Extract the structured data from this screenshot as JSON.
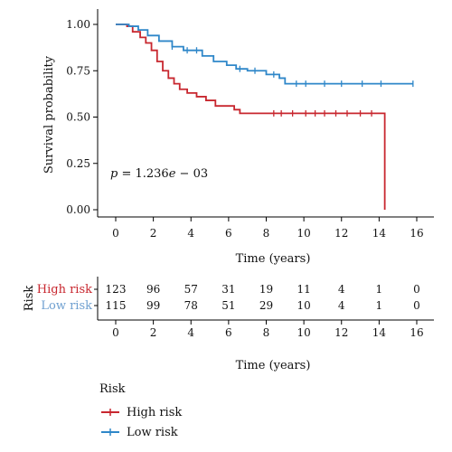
{
  "chart_data": {
    "type": "line",
    "subtype": "kaplan-meier",
    "annotation": "p = 1.236e − 03",
    "annotation_parts": {
      "p": "p",
      "eq": " = 1.236",
      "e": "e",
      "rest": " − 03"
    },
    "ylabel": "Survival probability",
    "xlabel": "Time (years)",
    "ylim": [
      0,
      1
    ],
    "xlim": [
      0,
      16
    ],
    "y_ticks": [
      "1.00",
      "0.75",
      "0.50",
      "0.25",
      "0.00"
    ],
    "y_tick_values": [
      1.0,
      0.75,
      0.5,
      0.25,
      0.0
    ],
    "x_ticks": [
      "0",
      "2",
      "4",
      "6",
      "8",
      "10",
      "12",
      "14",
      "16"
    ],
    "x_tick_values": [
      0,
      2,
      4,
      6,
      8,
      10,
      12,
      14,
      16
    ],
    "series": [
      {
        "name": "High risk",
        "color": "#c8272f",
        "steps": [
          [
            0,
            1.0
          ],
          [
            0.6,
            0.99
          ],
          [
            0.9,
            0.96
          ],
          [
            1.3,
            0.93
          ],
          [
            1.6,
            0.9
          ],
          [
            1.9,
            0.86
          ],
          [
            2.2,
            0.8
          ],
          [
            2.5,
            0.75
          ],
          [
            2.8,
            0.71
          ],
          [
            3.1,
            0.68
          ],
          [
            3.4,
            0.65
          ],
          [
            3.8,
            0.63
          ],
          [
            4.3,
            0.61
          ],
          [
            4.8,
            0.59
          ],
          [
            5.3,
            0.56
          ],
          [
            6.3,
            0.54
          ],
          [
            6.6,
            0.52
          ],
          [
            14.2,
            0.52
          ],
          [
            14.3,
            0.0
          ]
        ],
        "censor": [
          8.4,
          8.8,
          9.4,
          10.1,
          10.6,
          11.1,
          11.7,
          12.3,
          13.0,
          13.6
        ]
      },
      {
        "name": "Low risk",
        "color": "#2f87c9",
        "steps": [
          [
            0,
            1.0
          ],
          [
            0.7,
            0.99
          ],
          [
            1.2,
            0.97
          ],
          [
            1.7,
            0.94
          ],
          [
            2.3,
            0.91
          ],
          [
            3.0,
            0.88
          ],
          [
            3.6,
            0.86
          ],
          [
            4.6,
            0.83
          ],
          [
            5.2,
            0.8
          ],
          [
            5.9,
            0.78
          ],
          [
            6.4,
            0.76
          ],
          [
            7.0,
            0.75
          ],
          [
            8.0,
            0.73
          ],
          [
            8.7,
            0.71
          ],
          [
            9.0,
            0.68
          ],
          [
            15.8,
            0.68
          ]
        ],
        "censor": [
          3.0,
          3.8,
          4.3,
          6.6,
          7.4,
          8.4,
          9.6,
          10.1,
          11.1,
          12.0,
          13.1,
          14.1,
          15.8
        ]
      }
    ],
    "risk_table": {
      "title": "Risk",
      "xlabel": "Time (years)",
      "rows": [
        {
          "label": "High risk",
          "color": "#c8272f",
          "counts": [
            "123",
            "96",
            "57",
            "31",
            "19",
            "11",
            "4",
            "1",
            "0"
          ]
        },
        {
          "label": "Low risk",
          "color": "#6e9fd0",
          "counts": [
            "115",
            "99",
            "78",
            "51",
            "29",
            "10",
            "4",
            "1",
            "0"
          ]
        }
      ]
    },
    "legend": {
      "title": "Risk",
      "placement": "bottom-left",
      "items": [
        {
          "label": "High risk",
          "color": "#c8272f"
        },
        {
          "label": "Low risk",
          "color": "#2f87c9"
        }
      ]
    }
  }
}
